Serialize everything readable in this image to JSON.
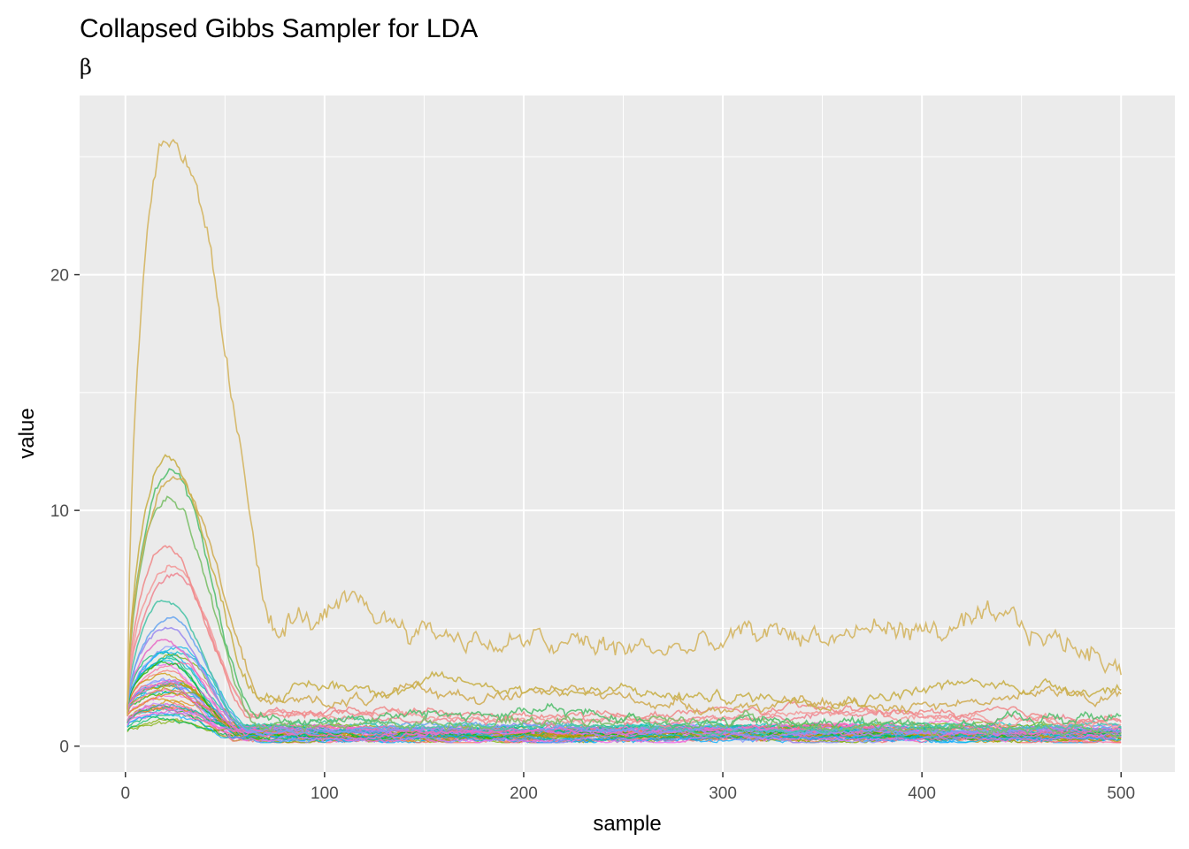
{
  "chart_data": {
    "type": "line",
    "title": "Collapsed Gibbs Sampler for LDA",
    "subtitle": "β",
    "xlabel": "sample",
    "ylabel": "value",
    "xlim": [
      -23,
      527
    ],
    "ylim": [
      -1.1,
      27.6
    ],
    "x_ticks": [
      0,
      100,
      200,
      300,
      400,
      500
    ],
    "y_ticks": [
      0,
      10,
      20
    ],
    "grid": true,
    "legend": "none",
    "panel_background": "#ebebeb",
    "grid_color": "#ffffff",
    "series_count_estimate": 60,
    "representative_series": [
      {
        "color": "#d4b560",
        "peak_x": 21,
        "peak": 26.3,
        "plateau": 4.8,
        "final": 4.3
      },
      {
        "color": "#c9b04a",
        "peak_x": 21,
        "peak": 12.3,
        "plateau": 2.4,
        "final": 2.3
      },
      {
        "color": "#d0ad55",
        "peak_x": 25,
        "peak": 11.7,
        "plateau": 2.0,
        "final": 1.9
      },
      {
        "color": "#55c070",
        "peak_x": 22,
        "peak": 11.4,
        "plateau": 1.3,
        "final": 1.0
      },
      {
        "color": "#7cc06a",
        "peak_x": 22,
        "peak": 10.4,
        "plateau": 1.1,
        "final": 0.9
      },
      {
        "color": "#f08c8c",
        "peak_x": 20,
        "peak": 8.3,
        "plateau": 1.4,
        "final": 1.3
      },
      {
        "color": "#f39c9c",
        "peak_x": 23,
        "peak": 7.8,
        "plateau": 1.3,
        "final": 1.1
      },
      {
        "color": "#ee8a95",
        "peak_x": 24,
        "peak": 7.2,
        "plateau": 1.2,
        "final": 1.2
      },
      {
        "color": "#4cc4a8",
        "peak_x": 20,
        "peak": 6.1,
        "plateau": 0.9,
        "final": 0.8
      },
      {
        "color": "#6aa6f0",
        "peak_x": 22,
        "peak": 5.4,
        "plateau": 0.8,
        "final": 0.7
      },
      {
        "color": "#9c8cf0",
        "peak_x": 21,
        "peak": 5.0,
        "plateau": 0.7,
        "final": 0.6
      },
      {
        "color": "#e870c8",
        "peak_x": 20,
        "peak": 4.4,
        "plateau": 0.6,
        "final": 0.6
      }
    ]
  }
}
